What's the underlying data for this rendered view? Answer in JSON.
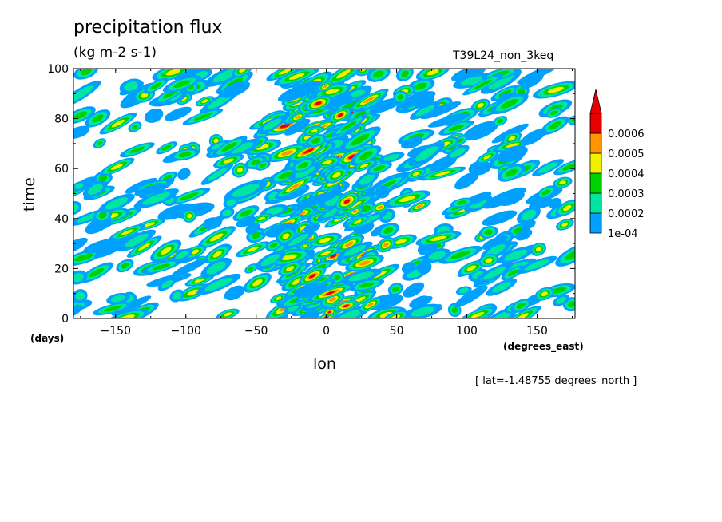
{
  "title": "precipitation flux",
  "units": "(kg m-2 s-1)",
  "run_label": "T39L24_non_3keq",
  "note": "[ lat=-1.48755 degrees_north ]",
  "chart_data": {
    "type": "heatmap",
    "xlabel": "lon",
    "ylabel": "time",
    "x_units": "(degrees_east)",
    "y_units": "(days)",
    "xlim": [
      -180,
      177
    ],
    "ylim": [
      0,
      100
    ],
    "xticks": [
      -150,
      -100,
      -50,
      0,
      50,
      100,
      150
    ],
    "yticks": [
      0,
      20,
      40,
      60,
      80,
      100
    ],
    "colorbar": {
      "levels": [
        "1e-04",
        "0.0002",
        "0.0003",
        "0.0004",
        "0.0005",
        "0.0006"
      ],
      "colors": [
        "#00a0ff",
        "#00e6a0",
        "#00d200",
        "#f0f000",
        "#ff9600",
        "#e60000"
      ],
      "extend": "max"
    },
    "field_description_note": "scattered streaks of precipitation across all longitudes and times, strongest near lon 0"
  }
}
